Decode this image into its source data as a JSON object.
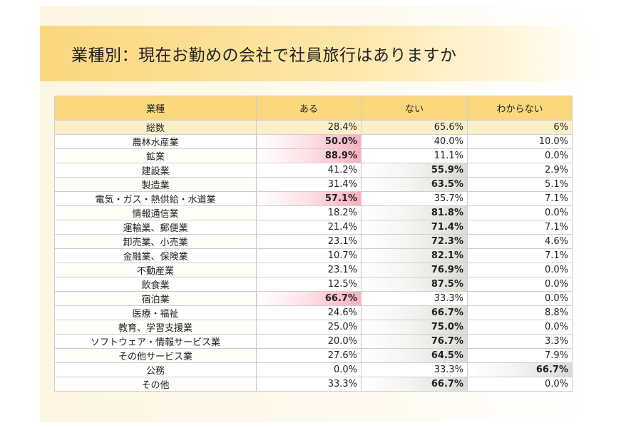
{
  "title": "業種別：現在お勤めの会社で社員旅行はありますか",
  "table": {
    "headers": [
      "業種",
      "ある",
      "ない",
      "わからない"
    ],
    "total": {
      "label": "総数",
      "values": [
        "28.4%",
        "65.6%",
        "6%"
      ]
    },
    "rows": [
      {
        "label": "農林水産業",
        "values": [
          "50.0%",
          "40.0%",
          "10.0%"
        ],
        "max": 0
      },
      {
        "label": "鉱業",
        "values": [
          "88.9%",
          "11.1%",
          "0.0%"
        ],
        "max": 0
      },
      {
        "label": "建設業",
        "values": [
          "41.2%",
          "55.9%",
          "2.9%"
        ],
        "max": 1
      },
      {
        "label": "製造業",
        "values": [
          "31.4%",
          "63.5%",
          "5.1%"
        ],
        "max": 1
      },
      {
        "label": "電気・ガス・熱供給・水道業",
        "values": [
          "57.1%",
          "35.7%",
          "7.1%"
        ],
        "max": 0
      },
      {
        "label": "情報通信業",
        "values": [
          "18.2%",
          "81.8%",
          "0.0%"
        ],
        "max": 1
      },
      {
        "label": "運輸業、郵便業",
        "values": [
          "21.4%",
          "71.4%",
          "7.1%"
        ],
        "max": 1
      },
      {
        "label": "卸売業、小売業",
        "values": [
          "23.1%",
          "72.3%",
          "4.6%"
        ],
        "max": 1
      },
      {
        "label": "金融業、保険業",
        "values": [
          "10.7%",
          "82.1%",
          "7.1%"
        ],
        "max": 1
      },
      {
        "label": "不動産業",
        "values": [
          "23.1%",
          "76.9%",
          "0.0%"
        ],
        "max": 1
      },
      {
        "label": "飲食業",
        "values": [
          "12.5%",
          "87.5%",
          "0.0%"
        ],
        "max": 1
      },
      {
        "label": "宿泊業",
        "values": [
          "66.7%",
          "33.3%",
          "0.0%"
        ],
        "max": 0
      },
      {
        "label": "医療・福祉",
        "values": [
          "24.6%",
          "66.7%",
          "8.8%"
        ],
        "max": 1
      },
      {
        "label": "教育、学習支援業",
        "values": [
          "25.0%",
          "75.0%",
          "0.0%"
        ],
        "max": 1
      },
      {
        "label": "ソフトウェア・情報サービス業",
        "values": [
          "20.0%",
          "76.7%",
          "3.3%"
        ],
        "max": 1
      },
      {
        "label": "その他サービス業",
        "values": [
          "27.6%",
          "64.5%",
          "7.9%"
        ],
        "max": 1
      },
      {
        "label": "公務",
        "values": [
          "0.0%",
          "33.3%",
          "66.7%"
        ],
        "max": 2
      },
      {
        "label": "その他",
        "values": [
          "33.3%",
          "66.7%",
          "0.0%"
        ],
        "max": 1
      }
    ]
  }
}
